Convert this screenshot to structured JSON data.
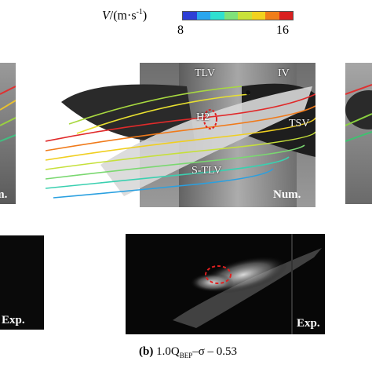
{
  "colorbar": {
    "title_var": "V",
    "title_unit": "/(m·s",
    "title_exp": "-1",
    "title_close": ")",
    "min": "8",
    "max": "16",
    "colors": [
      "#2f3fd6",
      "#2aa6ee",
      "#2fe0d0",
      "#7fe27a",
      "#c9e23a",
      "#f2d21e",
      "#f07e1a",
      "#d92020"
    ]
  },
  "numerical_panel": {
    "label": "Num.",
    "annotations": [
      "TLV",
      "IV",
      "H2",
      "TSV",
      "S-TLV"
    ]
  },
  "left_numerical_panel": {
    "label": "Num."
  },
  "experimental_panel": {
    "label": "Exp."
  },
  "left_experimental_panel": {
    "label": "Exp."
  },
  "caption": {
    "letter": "(b)",
    "text_main": "1.0Q",
    "text_sub": "BEP",
    "text_tail": "–σ – 0.53"
  }
}
